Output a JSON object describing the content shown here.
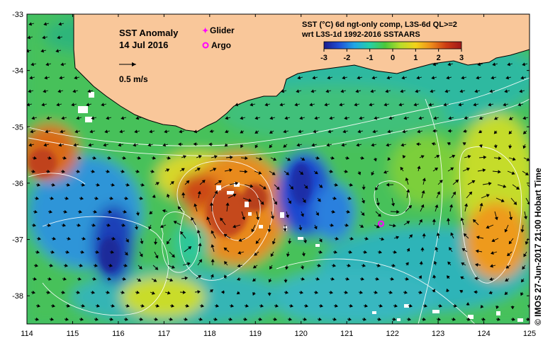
{
  "map": {
    "title": "SST Anomaly",
    "date": "14 Jul 2016",
    "vector_scale_label": "0.5 m/s",
    "legend_title_line1": "SST (°C) 6d ngt-only comp, L3S-6d QL>=2",
    "legend_title_line2": "wrt L3S-1d 1992-2016 SSTAARS",
    "colorbar_ticks": [
      "-3",
      "-2",
      "-1",
      "0",
      "1",
      "2",
      "3"
    ],
    "colorbar_colors": [
      "#1a1a8c",
      "#1f4fd6",
      "#21a6e6",
      "#25d0a6",
      "#4cc83a",
      "#b7dd2a",
      "#f3d21a",
      "#ee8d1a",
      "#cc3b13",
      "#a0181a"
    ],
    "x_axis_ticks": [
      "114",
      "115",
      "116",
      "117",
      "118",
      "119",
      "120",
      "121",
      "122",
      "123",
      "124",
      "125"
    ],
    "y_axis_ticks": [
      "-33",
      "-34",
      "-35",
      "-36",
      "-37",
      "-38"
    ],
    "x_range": [
      114,
      125
    ],
    "y_range": [
      -38.5,
      -33
    ],
    "legend": {
      "glider_label": "Glider",
      "argo_label": "Argo",
      "glider_color": "#ff00ff",
      "argo_color": "#ff00ff"
    },
    "argo_float": {
      "lon": 121.75,
      "lat": -36.72
    },
    "land_color": "#f9c79a",
    "credit": "© IMOS 27-Jun-2017 21:00 Hobart Time"
  }
}
